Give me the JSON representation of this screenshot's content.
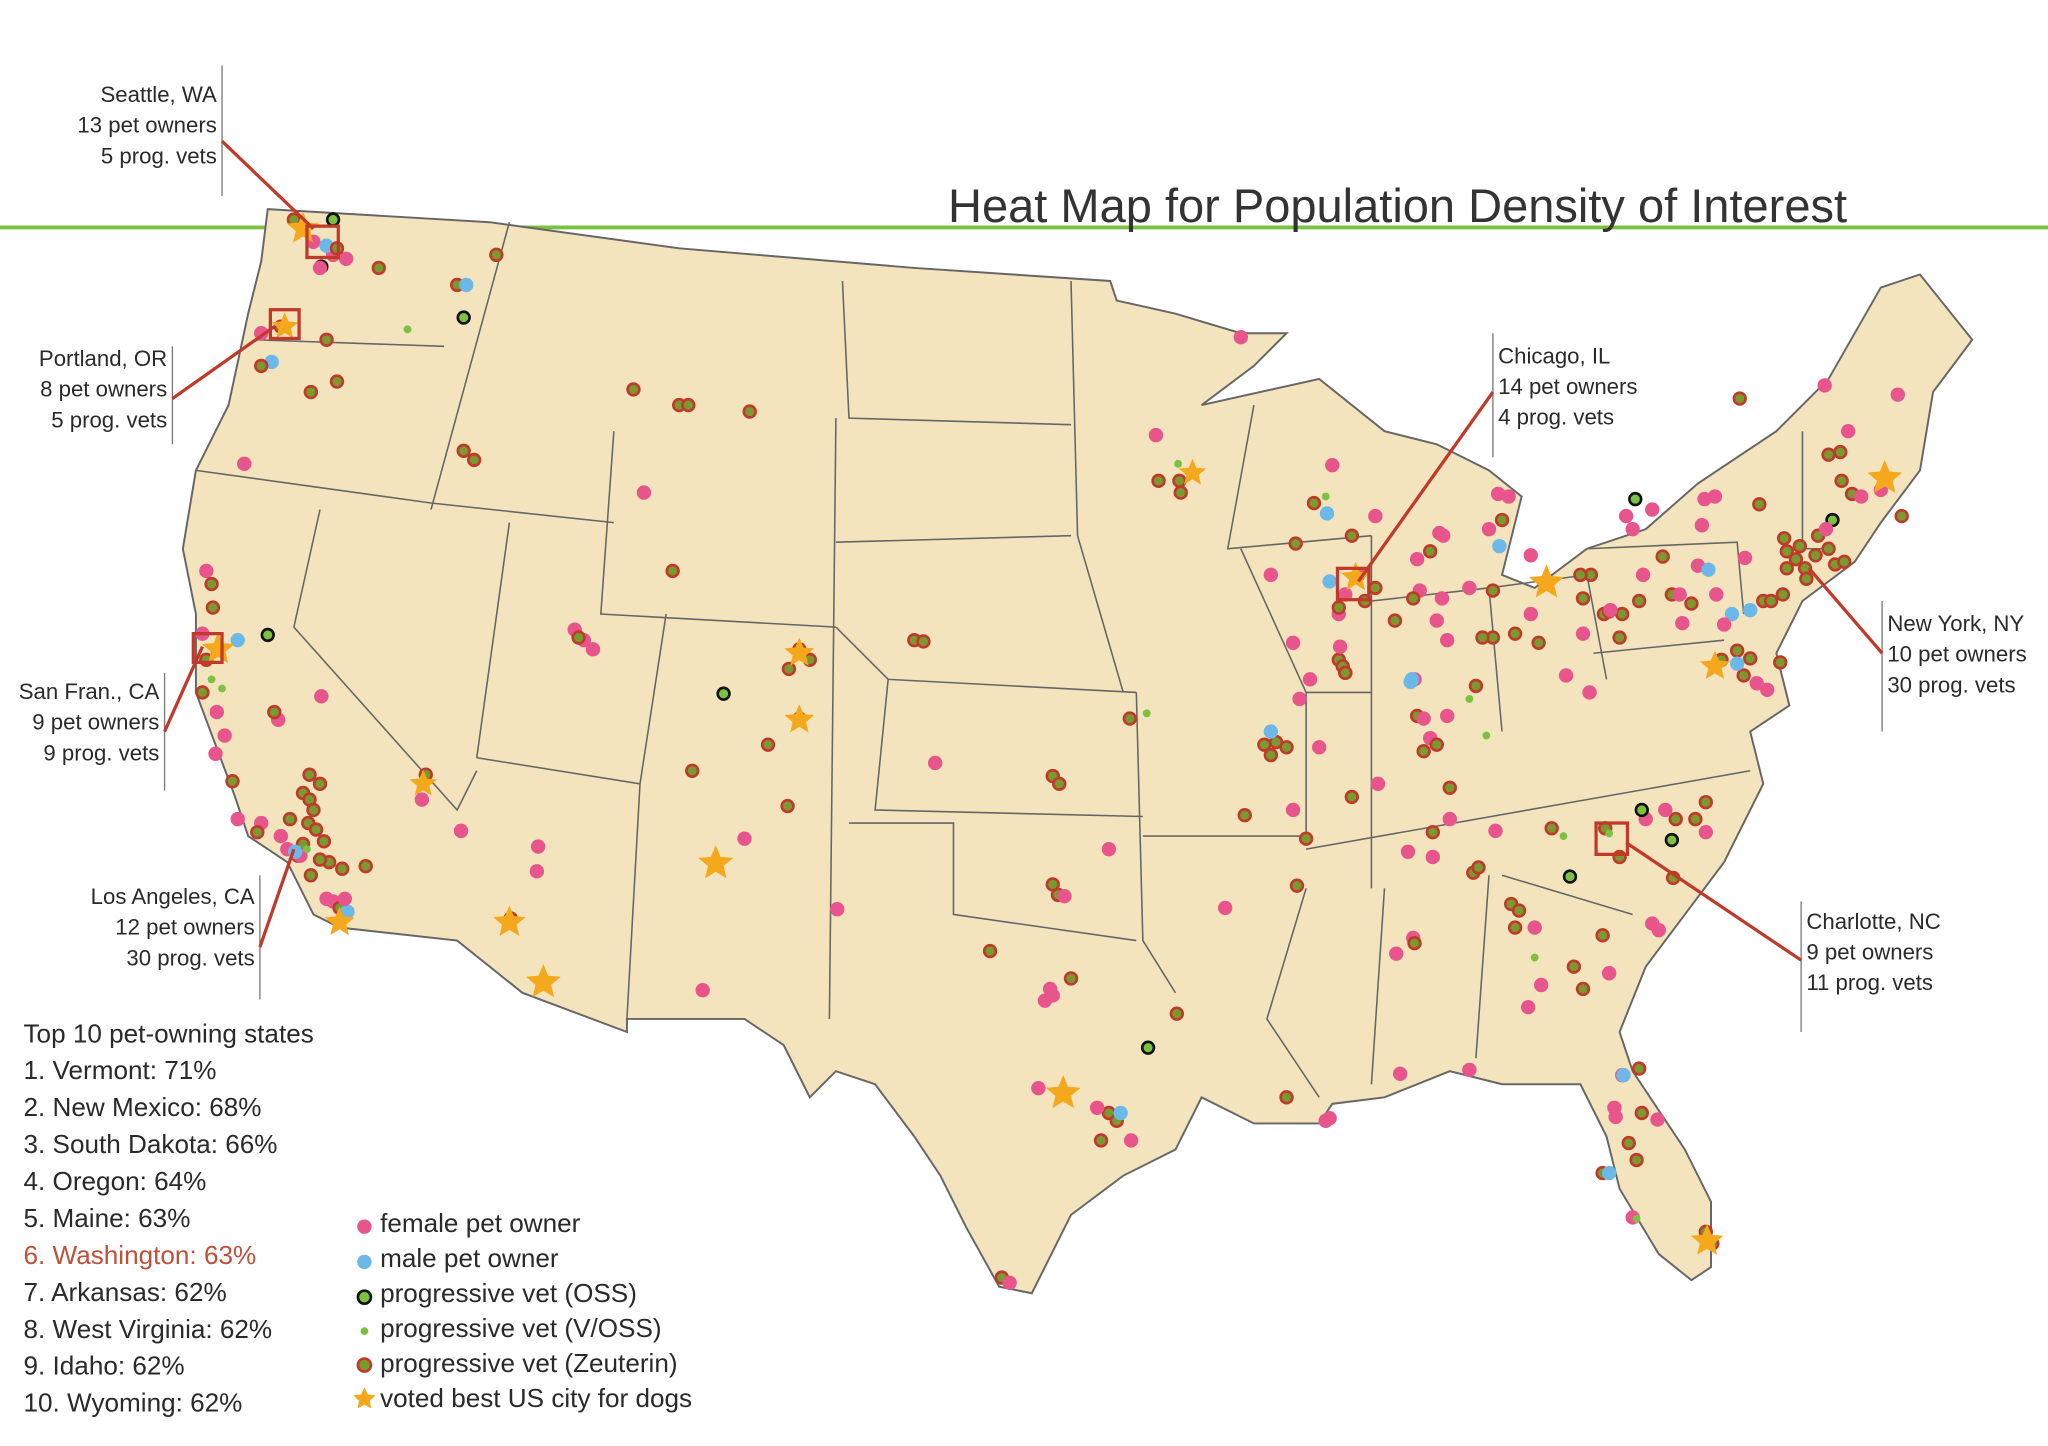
{
  "title": "Heat Map for Population Density of Interest",
  "callouts": [
    {
      "lines": [
        "Seattle, WA",
        "13 pet owners",
        "5 prog. vets"
      ]
    },
    {
      "lines": [
        "Portland, OR",
        "8 pet owners",
        "5 prog. vets"
      ]
    },
    {
      "lines": [
        "San Fran., CA",
        "9 pet owners",
        "9 prog. vets"
      ]
    },
    {
      "lines": [
        "Los Angeles, CA",
        "12 pet owners",
        "30 prog. vets"
      ]
    },
    {
      "lines": [
        "Chicago, IL",
        "14 pet owners",
        "4 prog. vets"
      ]
    },
    {
      "lines": [
        "New York, NY",
        "10 pet owners",
        "30 prog. vets"
      ]
    },
    {
      "lines": [
        "Charlotte, NC",
        "9 pet owners",
        "11 prog. vets"
      ]
    }
  ],
  "top_states": {
    "heading": "Top 10 pet-owning states",
    "items": [
      "1. Vermont: 71%",
      "2. New Mexico: 68%",
      "3. South Dakota: 66%",
      "4. Oregon: 64%",
      "5. Maine: 63%",
      "6. Washington: 63%",
      "7. Arkansas: 62%",
      "8. West Virginia: 62%",
      "9. Idaho: 62%",
      "10. Wyoming: 62%"
    ]
  },
  "legend": [
    "female pet owner",
    "male pet owner",
    "progressive vet (OSS)",
    "progressive vet (V/OSS)",
    "progressive vet (Zeuterin)",
    "voted best US city for dogs"
  ]
}
